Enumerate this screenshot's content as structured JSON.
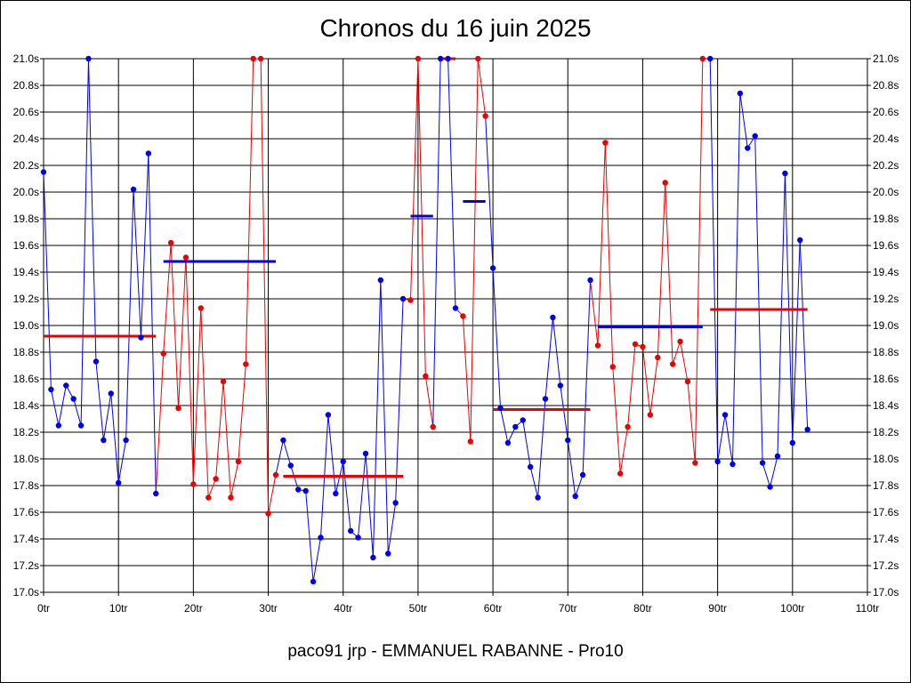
{
  "chart_data": {
    "type": "line",
    "title": "Chronos du 16 juin 2025",
    "footer": "paco91 jrp - EMMANUEL RABANNE - Pro10",
    "xlim": [
      0,
      110
    ],
    "ylim": [
      17.0,
      21.0
    ],
    "grid": true,
    "x_ticks": [
      "0tr",
      "10tr",
      "20tr",
      "30tr",
      "40tr",
      "50tr",
      "60tr",
      "70tr",
      "80tr",
      "90tr",
      "100tr",
      "110tr"
    ],
    "y_ticks": [
      "17.0s",
      "17.2s",
      "17.4s",
      "17.6s",
      "17.8s",
      "18.0s",
      "18.2s",
      "18.4s",
      "18.6s",
      "18.8s",
      "19.0s",
      "19.2s",
      "19.4s",
      "19.6s",
      "19.8s",
      "20.0s",
      "20.2s",
      "20.4s",
      "20.6s",
      "20.8s",
      "21.0s"
    ],
    "colors": {
      "blue": "#0000ee",
      "red": "#ee0000"
    },
    "segments": [
      {
        "color": "blue",
        "average": 18.92,
        "x": [
          0,
          1,
          2,
          3,
          4,
          5,
          6,
          7,
          8,
          9,
          10,
          11,
          12,
          13,
          14,
          15
        ],
        "y": [
          20.15,
          18.52,
          18.25,
          18.55,
          18.45,
          18.25,
          21.0,
          18.73,
          18.14,
          18.49,
          17.82,
          18.14,
          20.02,
          18.91,
          20.29,
          17.74
        ]
      },
      {
        "color": "red",
        "average": 18.92,
        "x": [
          16,
          17,
          18,
          19,
          20,
          21,
          22,
          23,
          24,
          25,
          26,
          27,
          28,
          29,
          30
        ],
        "y": [
          18.79,
          19.62,
          18.38,
          19.51,
          17.81,
          19.13,
          17.71,
          17.85,
          18.58,
          17.71,
          17.98,
          18.71,
          21.0,
          21.0,
          17.59
        ]
      },
      {
        "color": "red",
        "average": 19.48,
        "x": [
          31
        ],
        "y": [
          17.88
        ]
      },
      {
        "color": "blue",
        "average": 17.87,
        "x": [
          32,
          33,
          34,
          35,
          36,
          37,
          38,
          39,
          40,
          41,
          42,
          43,
          44,
          45,
          46,
          47,
          48
        ],
        "y": [
          18.14,
          17.95,
          17.77,
          17.76,
          17.08,
          17.41,
          18.33,
          17.74,
          17.98,
          17.46,
          17.41,
          18.04,
          17.26,
          19.34,
          17.29,
          17.67,
          19.2
        ]
      },
      {
        "color": "red",
        "average": 19.82,
        "x": [
          49,
          50,
          51,
          52
        ],
        "y": [
          19.19,
          21.0,
          18.62,
          18.24
        ]
      },
      {
        "color": "blue",
        "average": 21.0,
        "x": [
          53,
          54,
          55
        ],
        "y": [
          21.0,
          21.0,
          19.13
        ]
      },
      {
        "color": "red",
        "average": 19.93,
        "x": [
          56,
          57,
          58,
          59
        ],
        "y": [
          19.07,
          18.13,
          21.0,
          20.57
        ]
      },
      {
        "color": "blue",
        "average": 18.37,
        "x": [
          60,
          61,
          62,
          63,
          64,
          65,
          66,
          67,
          68,
          69,
          70,
          71,
          72,
          73
        ],
        "y": [
          19.43,
          18.38,
          18.12,
          18.24,
          18.29,
          17.94,
          17.71,
          18.45,
          19.06,
          18.55,
          18.14,
          17.72,
          17.88,
          19.34
        ]
      },
      {
        "color": "red",
        "average": 18.99,
        "x": [
          74,
          75,
          76,
          77,
          78,
          79,
          80,
          81,
          82,
          83,
          84,
          85,
          86,
          87,
          88
        ],
        "y": [
          18.85,
          20.37,
          18.69,
          17.89,
          18.24,
          18.86,
          18.84,
          18.33,
          18.76,
          20.07,
          18.71,
          18.88,
          18.58,
          17.97,
          21.0
        ]
      },
      {
        "color": "blue",
        "average": 19.12,
        "x": [
          89,
          90,
          91,
          92,
          93,
          94,
          95,
          96,
          97,
          98,
          99,
          100,
          101,
          102
        ],
        "y": [
          21.0,
          17.98,
          18.33,
          17.96,
          20.74,
          20.33,
          20.42,
          17.97,
          17.79,
          18.02,
          20.14,
          18.12,
          19.64,
          18.22
        ]
      }
    ],
    "averages": [
      {
        "color": "red",
        "from": 0,
        "to": 15,
        "value": 18.92
      },
      {
        "color": "blue",
        "from": 16,
        "to": 31,
        "value": 19.48
      },
      {
        "color": "red",
        "from": 32,
        "to": 48,
        "value": 17.87
      },
      {
        "color": "blue",
        "from": 49,
        "to": 52,
        "value": 19.82
      },
      {
        "color": "red",
        "from": 53,
        "to": 55,
        "value": 21.0
      },
      {
        "color": "blue",
        "from": 56,
        "to": 59,
        "value": 19.93
      },
      {
        "color": "red",
        "from": 60,
        "to": 73,
        "value": 18.37
      },
      {
        "color": "blue",
        "from": 74,
        "to": 88,
        "value": 18.99
      },
      {
        "color": "red",
        "from": 89,
        "to": 102,
        "value": 19.12
      }
    ]
  }
}
